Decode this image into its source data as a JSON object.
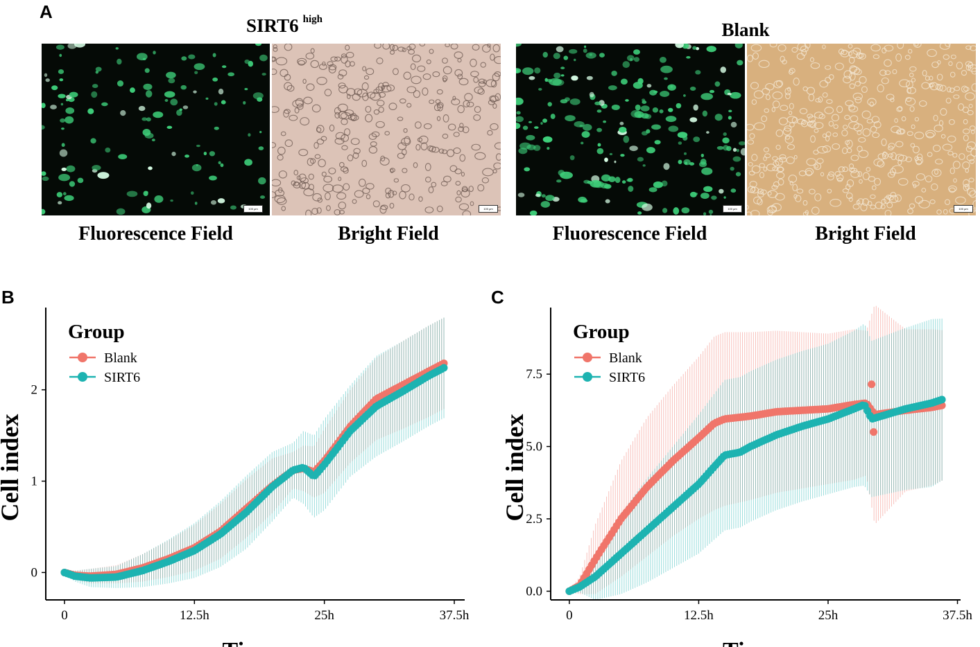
{
  "panel_a": {
    "letter": "A",
    "left_group": {
      "title": "SIRT6",
      "superscript": "high"
    },
    "right_group": {
      "title": "Blank"
    },
    "labels": {
      "fluorescence_1": "Fluorescence Field",
      "bright_1": "Bright Field",
      "fluorescence_2": "Fluorescence Field",
      "bright_2": "Bright Field"
    },
    "scale_bar": "100 μm",
    "colors": {
      "fluorescence_bg": "#050a06",
      "cell_green": "#3ecf7a",
      "bright_1_bg": "#dcc3b7",
      "bright_2_bg": "#d8b07e"
    }
  },
  "chart_data": [
    {
      "panel": "B",
      "type": "line",
      "xlabel": "Time",
      "ylabel": "Cell index",
      "xticks": [
        "0",
        "12.5h",
        "25h",
        "37.5h"
      ],
      "xtick_values": [
        0,
        12.5,
        25,
        37.5
      ],
      "yticks": [
        "0",
        "1",
        "2"
      ],
      "ytick_values": [
        0,
        1,
        2
      ],
      "xlim": [
        -1.8,
        38.5
      ],
      "ylim": [
        -0.3,
        2.9
      ],
      "legend": {
        "title": "Group",
        "position": "top-left",
        "entries": [
          "Blank",
          "SIRT6"
        ]
      },
      "series": [
        {
          "name": "Blank",
          "color": "#f0756a",
          "x": [
            0,
            1,
            2.5,
            5,
            7.5,
            10,
            12.5,
            15,
            17.5,
            20,
            22,
            23,
            24,
            25,
            27.5,
            30,
            32.5,
            35,
            36.5
          ],
          "y": [
            0,
            -0.03,
            -0.04,
            -0.02,
            0.05,
            0.15,
            0.27,
            0.45,
            0.7,
            0.95,
            1.12,
            1.14,
            1.1,
            1.22,
            1.6,
            1.9,
            2.05,
            2.2,
            2.29
          ],
          "error": [
            0.02,
            0.05,
            0.08,
            0.1,
            0.15,
            0.2,
            0.25,
            0.3,
            0.32,
            0.3,
            0.2,
            0.25,
            0.28,
            0.35,
            0.4,
            0.45,
            0.48,
            0.5,
            0.5
          ]
        },
        {
          "name": "SIRT6",
          "color": "#1db3b1",
          "x": [
            0,
            1,
            2.5,
            5,
            7.5,
            10,
            12.5,
            15,
            17.5,
            20,
            22,
            23,
            24,
            25,
            27.5,
            30,
            32.5,
            35,
            36.5
          ],
          "y": [
            0,
            -0.04,
            -0.06,
            -0.05,
            0.02,
            0.12,
            0.24,
            0.42,
            0.66,
            0.94,
            1.12,
            1.15,
            1.05,
            1.18,
            1.55,
            1.82,
            1.98,
            2.15,
            2.24
          ],
          "error": [
            0.02,
            0.06,
            0.1,
            0.12,
            0.18,
            0.24,
            0.3,
            0.36,
            0.4,
            0.38,
            0.3,
            0.4,
            0.45,
            0.5,
            0.5,
            0.55,
            0.55,
            0.55,
            0.55
          ]
        }
      ]
    },
    {
      "panel": "C",
      "type": "line",
      "xlabel": "Time",
      "ylabel": "Cell index",
      "xticks": [
        "0",
        "12.5h",
        "25h",
        "37.5h"
      ],
      "xtick_values": [
        0,
        12.5,
        25,
        37.5
      ],
      "yticks": [
        "0.0",
        "2.5",
        "5.0",
        "7.5"
      ],
      "ytick_values": [
        0,
        2.5,
        5,
        7.5
      ],
      "xlim": [
        -1.8,
        37.8
      ],
      "ylim": [
        -0.3,
        9.8
      ],
      "legend": {
        "title": "Group",
        "position": "top-left",
        "entries": [
          "Blank",
          "SIRT6"
        ]
      },
      "series": [
        {
          "name": "Blank",
          "color": "#f0756a",
          "x": [
            0,
            1,
            2.5,
            5,
            7.5,
            10,
            12.5,
            14,
            15,
            17.5,
            20,
            22.5,
            25,
            27.5,
            28.7,
            29.5,
            32.5,
            35,
            36
          ],
          "y": [
            0,
            0.2,
            1.1,
            2.5,
            3.6,
            4.5,
            5.3,
            5.8,
            5.95,
            6.05,
            6.2,
            6.25,
            6.3,
            6.45,
            6.5,
            6.1,
            6.25,
            6.35,
            6.42
          ],
          "error": [
            0.05,
            0.3,
            1.2,
            2.0,
            2.4,
            2.6,
            2.8,
            3.0,
            3.0,
            2.9,
            2.8,
            2.7,
            2.6,
            2.6,
            2.5,
            3.8,
            2.8,
            2.7,
            2.6
          ],
          "outliers": [
            {
              "x": 29.2,
              "y": 7.15
            },
            {
              "x": 29.4,
              "y": 5.5
            }
          ]
        },
        {
          "name": "SIRT6",
          "color": "#1db3b1",
          "x": [
            0,
            1,
            2.5,
            5,
            7.5,
            10,
            12.5,
            15,
            16.5,
            17.5,
            20,
            22.5,
            25,
            27.5,
            28.5,
            29.2,
            32.5,
            35,
            36
          ],
          "y": [
            0,
            0.15,
            0.5,
            1.3,
            2.1,
            2.9,
            3.7,
            4.7,
            4.8,
            5.0,
            5.4,
            5.7,
            5.95,
            6.3,
            6.45,
            5.95,
            6.3,
            6.5,
            6.62
          ],
          "error": [
            0.05,
            0.2,
            0.8,
            1.4,
            1.8,
            2.1,
            2.4,
            2.6,
            2.6,
            2.6,
            2.6,
            2.6,
            2.6,
            2.7,
            2.8,
            2.7,
            2.8,
            2.9,
            2.8
          ]
        }
      ]
    }
  ]
}
